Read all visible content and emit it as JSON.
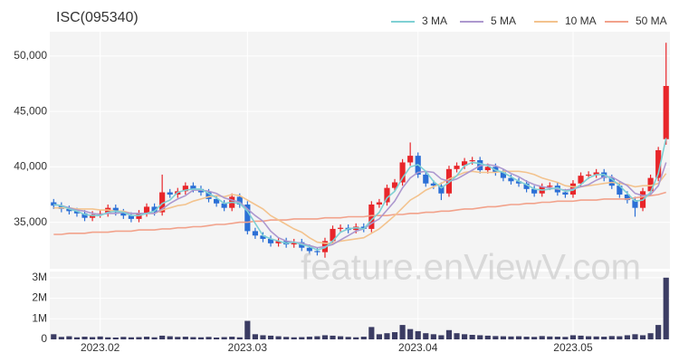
{
  "chart_data": {
    "type": "candlestick",
    "title": "ISC(095340)",
    "watermark": "feature.enViewV.com",
    "up_color": "#e8262a",
    "down_color": "#2b6fd6",
    "x": [
      null,
      null,
      null,
      null,
      null,
      null,
      "2023.02",
      null,
      null,
      null,
      null,
      null,
      null,
      null,
      null,
      null,
      null,
      null,
      null,
      null,
      null,
      null,
      null,
      null,
      null,
      "2023.03",
      null,
      null,
      null,
      null,
      null,
      null,
      null,
      null,
      null,
      null,
      null,
      null,
      null,
      null,
      null,
      null,
      null,
      null,
      null,
      null,
      null,
      "2023.04",
      null,
      null,
      null,
      null,
      null,
      null,
      null,
      null,
      null,
      null,
      null,
      null,
      null,
      null,
      null,
      null,
      null,
      null,
      null,
      "2023.05",
      null,
      null,
      null,
      null,
      null,
      null,
      null,
      null,
      null,
      null,
      null,
      null
    ],
    "open": [
      36800,
      36500,
      36200,
      36000,
      35800,
      35400,
      35700,
      35800,
      36300,
      35900,
      35600,
      35300,
      35800,
      36400,
      35900,
      37700,
      37500,
      37800,
      38300,
      38000,
      37700,
      37100,
      36700,
      36300,
      37300,
      36600,
      34200,
      33800,
      33500,
      33100,
      33300,
      33000,
      33200,
      32700,
      32400,
      32300,
      33300,
      34400,
      34500,
      34300,
      34600,
      34400,
      36600,
      36800,
      38100,
      38600,
      40400,
      41000,
      39300,
      38500,
      38300,
      37600,
      39800,
      40100,
      40500,
      40600,
      39700,
      40000,
      39500,
      39000,
      38700,
      38500,
      38000,
      37600,
      38200,
      38300,
      37700,
      37500,
      38500,
      39200,
      39300,
      39500,
      39000,
      38300,
      37500,
      37000,
      36300,
      37800,
      39000,
      42500
    ],
    "high": [
      37100,
      36800,
      36500,
      36300,
      36100,
      36000,
      36100,
      36600,
      36600,
      36200,
      35900,
      36100,
      36700,
      36700,
      39300,
      38000,
      38100,
      38600,
      38600,
      38300,
      38000,
      37400,
      37000,
      37600,
      37600,
      36900,
      34500,
      34100,
      33800,
      33600,
      33600,
      33500,
      33500,
      33000,
      32700,
      33600,
      34700,
      34800,
      34800,
      34900,
      34900,
      36900,
      37100,
      38400,
      38900,
      40700,
      42200,
      41300,
      39600,
      38800,
      38600,
      40100,
      40400,
      40800,
      40900,
      40900,
      40300,
      40300,
      39800,
      39300,
      39000,
      38800,
      38300,
      38500,
      38600,
      38600,
      38000,
      38800,
      39500,
      39600,
      39800,
      39800,
      39300,
      38600,
      37800,
      37300,
      38100,
      39300,
      41800,
      51200
    ],
    "low": [
      36200,
      35900,
      35700,
      35500,
      35100,
      35100,
      35400,
      35500,
      35600,
      35300,
      35000,
      35000,
      35500,
      35600,
      35600,
      37200,
      37200,
      37500,
      37700,
      37400,
      36800,
      36400,
      36000,
      36000,
      36300,
      33900,
      33500,
      33200,
      32800,
      32800,
      32700,
      32700,
      32400,
      32100,
      32000,
      31800,
      33000,
      34100,
      34000,
      34000,
      34100,
      34100,
      36300,
      36500,
      37800,
      38300,
      40100,
      39000,
      38200,
      38000,
      37000,
      37300,
      39500,
      39800,
      40200,
      39400,
      39400,
      39200,
      38700,
      38400,
      38200,
      37700,
      37300,
      37300,
      37900,
      37400,
      37200,
      37200,
      38200,
      38900,
      39000,
      38700,
      38000,
      37200,
      36700,
      35500,
      36000,
      37500,
      38700,
      42000
    ],
    "close": [
      36500,
      36200,
      36000,
      35800,
      35400,
      35700,
      35800,
      36300,
      35900,
      35600,
      35300,
      35800,
      36400,
      35900,
      37700,
      37500,
      37800,
      38300,
      38000,
      37700,
      37100,
      36700,
      36300,
      37300,
      36600,
      34200,
      33800,
      33500,
      33100,
      33300,
      33000,
      33200,
      32700,
      32400,
      32300,
      33300,
      34400,
      34500,
      34300,
      34600,
      34400,
      36600,
      36800,
      38100,
      38600,
      40400,
      41000,
      39300,
      38500,
      38300,
      37600,
      39800,
      40100,
      40500,
      40600,
      39700,
      40000,
      39500,
      39000,
      38700,
      38500,
      38000,
      37600,
      38200,
      38300,
      37700,
      37500,
      38500,
      39200,
      39300,
      39500,
      39000,
      38300,
      37500,
      37000,
      36300,
      37800,
      39000,
      41500,
      47300
    ],
    "ylim": [
      30800,
      52200
    ],
    "yticks": [
      {
        "value": 35000,
        "label": "35,000"
      },
      {
        "value": 40000,
        "label": "40,000"
      },
      {
        "value": 45000,
        "label": "45,000"
      },
      {
        "value": 50000,
        "label": "50,000"
      }
    ],
    "ma_series": [
      {
        "name": "3 MA",
        "color": "#7fd0d4",
        "values": [
          36600,
          36500,
          36200,
          36000,
          35700,
          35600,
          35600,
          35900,
          36000,
          35900,
          35600,
          35600,
          35800,
          36000,
          36700,
          37000,
          37700,
          37900,
          38000,
          38000,
          37600,
          37200,
          36700,
          36800,
          36700,
          36000,
          34900,
          33800,
          33500,
          33300,
          33100,
          33200,
          33000,
          32800,
          32500,
          32700,
          33300,
          34100,
          34400,
          34500,
          34400,
          35200,
          35900,
          37200,
          37800,
          39000,
          40000,
          40200,
          39600,
          38700,
          38100,
          38600,
          39200,
          40100,
          40400,
          40300,
          40100,
          39700,
          39500,
          39100,
          38700,
          38400,
          38000,
          37900,
          38000,
          38100,
          37800,
          37900,
          38400,
          39000,
          39300,
          39300,
          38900,
          38300,
          37600,
          36900,
          37000,
          37700,
          39400,
          42600
        ]
      },
      {
        "name": "5 MA",
        "color": "#ad98cf",
        "values": [
          36600,
          36500,
          36300,
          36100,
          36000,
          35800,
          35700,
          35800,
          35800,
          35900,
          35800,
          35800,
          35800,
          35800,
          36200,
          36700,
          37100,
          37400,
          37900,
          37900,
          37800,
          37600,
          37200,
          37000,
          36800,
          36200,
          35600,
          35100,
          34200,
          33600,
          33300,
          33200,
          33100,
          32900,
          32700,
          32800,
          33000,
          33400,
          33800,
          34200,
          34400,
          34900,
          35300,
          36100,
          36900,
          38100,
          39000,
          39500,
          39600,
          39500,
          38900,
          38700,
          38900,
          39300,
          39700,
          40100,
          40200,
          40100,
          39800,
          39400,
          39100,
          38700,
          38400,
          38200,
          38100,
          38000,
          37900,
          38000,
          38200,
          38400,
          38800,
          39100,
          39100,
          38700,
          38300,
          37600,
          37400,
          37500,
          38300,
          40400
        ]
      },
      {
        "name": "10 MA",
        "color": "#f3c38e",
        "values": [
          36300,
          36300,
          36300,
          36200,
          36200,
          36200,
          36100,
          36100,
          36000,
          36000,
          35800,
          35800,
          35800,
          35800,
          36100,
          36300,
          36500,
          36600,
          36900,
          37100,
          37300,
          37400,
          37300,
          37500,
          37400,
          37000,
          36600,
          36200,
          35600,
          35200,
          34800,
          34400,
          34100,
          33600,
          33200,
          33100,
          33100,
          33300,
          33400,
          33500,
          33600,
          34000,
          34400,
          35000,
          35600,
          36300,
          37000,
          37400,
          37900,
          38200,
          38500,
          38900,
          39200,
          39500,
          39600,
          39500,
          39500,
          39500,
          39600,
          39600,
          39600,
          39500,
          39300,
          39000,
          38800,
          38600,
          38300,
          38200,
          38200,
          38300,
          38400,
          38500,
          38600,
          38500,
          38400,
          38200,
          38300,
          38300,
          38500,
          39400
        ]
      },
      {
        "name": "50 MA",
        "color": "#f2a28b",
        "values": [
          33900,
          33900,
          34000,
          34000,
          34000,
          34100,
          34100,
          34100,
          34200,
          34200,
          34200,
          34300,
          34300,
          34300,
          34400,
          34400,
          34500,
          34500,
          34600,
          34600,
          34700,
          34800,
          34800,
          34900,
          35000,
          35000,
          35100,
          35100,
          35200,
          35200,
          35200,
          35300,
          35300,
          35300,
          35300,
          35400,
          35400,
          35400,
          35500,
          35500,
          35500,
          35600,
          35600,
          35600,
          35700,
          35700,
          35800,
          35800,
          35900,
          35900,
          36000,
          36000,
          36100,
          36200,
          36200,
          36300,
          36400,
          36400,
          36500,
          36600,
          36600,
          36700,
          36700,
          36800,
          36800,
          36900,
          36900,
          36900,
          37000,
          37000,
          37000,
          37100,
          37100,
          37100,
          37100,
          37200,
          37300,
          37400,
          37500,
          37700
        ]
      }
    ],
    "volume": {
      "color": "#3b3c63",
      "values": [
        250000,
        120000,
        150000,
        100000,
        130000,
        110000,
        140000,
        100000,
        90000,
        120000,
        100000,
        110000,
        130000,
        100000,
        180000,
        150000,
        120000,
        130000,
        110000,
        100000,
        120000,
        90000,
        110000,
        130000,
        100000,
        900000,
        250000,
        200000,
        180000,
        150000,
        120000,
        100000,
        110000,
        130000,
        150000,
        200000,
        180000,
        150000,
        120000,
        100000,
        130000,
        600000,
        250000,
        300000,
        350000,
        700000,
        500000,
        400000,
        300000,
        250000,
        200000,
        450000,
        300000,
        250000,
        220000,
        200000,
        180000,
        160000,
        150000,
        140000,
        150000,
        130000,
        120000,
        160000,
        140000,
        130000,
        120000,
        200000,
        180000,
        150000,
        140000,
        130000,
        160000,
        150000,
        200000,
        250000,
        200000,
        300000,
        700000,
        3000000
      ],
      "ylim": [
        0,
        3300000
      ],
      "yticks": [
        0,
        {
          "value": 1000000,
          "label": "1M"
        },
        {
          "value": 2000000,
          "label": "2M"
        },
        {
          "value": 3000000,
          "label": "3M"
        }
      ]
    }
  }
}
